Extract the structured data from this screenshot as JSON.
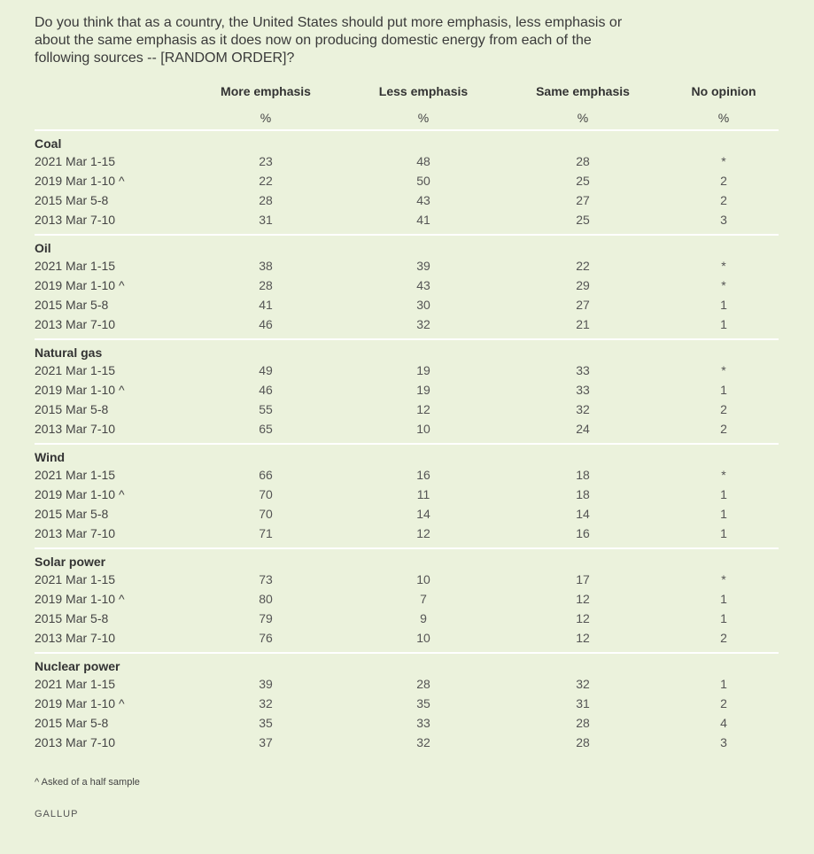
{
  "question": "Do you think that as a country, the United States should put more emphasis, less emphasis or about the same emphasis as it does now on producing domestic energy from each of the following sources -- [RANDOM ORDER]?",
  "columns": [
    "More emphasis",
    "Less emphasis",
    "Same emphasis",
    "No opinion"
  ],
  "units": [
    "%",
    "%",
    "%",
    "%"
  ],
  "groups": [
    {
      "name": "Coal",
      "rows": [
        {
          "date": "2021 Mar 1-15",
          "values": [
            "23",
            "48",
            "28",
            "*"
          ]
        },
        {
          "date": "2019 Mar 1-10 ^",
          "values": [
            "22",
            "50",
            "25",
            "2"
          ]
        },
        {
          "date": "2015 Mar 5-8",
          "values": [
            "28",
            "43",
            "27",
            "2"
          ]
        },
        {
          "date": "2013 Mar 7-10",
          "values": [
            "31",
            "41",
            "25",
            "3"
          ]
        }
      ]
    },
    {
      "name": "Oil",
      "rows": [
        {
          "date": "2021 Mar 1-15",
          "values": [
            "38",
            "39",
            "22",
            "*"
          ]
        },
        {
          "date": "2019 Mar 1-10 ^",
          "values": [
            "28",
            "43",
            "29",
            "*"
          ]
        },
        {
          "date": "2015 Mar 5-8",
          "values": [
            "41",
            "30",
            "27",
            "1"
          ]
        },
        {
          "date": "2013 Mar 7-10",
          "values": [
            "46",
            "32",
            "21",
            "1"
          ]
        }
      ]
    },
    {
      "name": "Natural gas",
      "rows": [
        {
          "date": "2021 Mar 1-15",
          "values": [
            "49",
            "19",
            "33",
            "*"
          ]
        },
        {
          "date": "2019 Mar 1-10 ^",
          "values": [
            "46",
            "19",
            "33",
            "1"
          ]
        },
        {
          "date": "2015 Mar 5-8",
          "values": [
            "55",
            "12",
            "32",
            "2"
          ]
        },
        {
          "date": "2013 Mar 7-10",
          "values": [
            "65",
            "10",
            "24",
            "2"
          ]
        }
      ]
    },
    {
      "name": "Wind",
      "rows": [
        {
          "date": "2021 Mar 1-15",
          "values": [
            "66",
            "16",
            "18",
            "*"
          ]
        },
        {
          "date": "2019 Mar 1-10 ^",
          "values": [
            "70",
            "11",
            "18",
            "1"
          ]
        },
        {
          "date": "2015 Mar 5-8",
          "values": [
            "70",
            "14",
            "14",
            "1"
          ]
        },
        {
          "date": "2013 Mar 7-10",
          "values": [
            "71",
            "12",
            "16",
            "1"
          ]
        }
      ]
    },
    {
      "name": "Solar power",
      "rows": [
        {
          "date": "2021 Mar 1-15",
          "values": [
            "73",
            "10",
            "17",
            "*"
          ]
        },
        {
          "date": "2019 Mar 1-10 ^",
          "values": [
            "80",
            "7",
            "12",
            "1"
          ]
        },
        {
          "date": "2015 Mar 5-8",
          "values": [
            "79",
            "9",
            "12",
            "1"
          ]
        },
        {
          "date": "2013 Mar 7-10",
          "values": [
            "76",
            "10",
            "12",
            "2"
          ]
        }
      ]
    },
    {
      "name": "Nuclear power",
      "rows": [
        {
          "date": "2021 Mar 1-15",
          "values": [
            "39",
            "28",
            "32",
            "1"
          ]
        },
        {
          "date": "2019 Mar 1-10 ^",
          "values": [
            "32",
            "35",
            "31",
            "2"
          ]
        },
        {
          "date": "2015 Mar 5-8",
          "values": [
            "35",
            "33",
            "28",
            "4"
          ]
        },
        {
          "date": "2013 Mar 7-10",
          "values": [
            "37",
            "32",
            "28",
            "3"
          ]
        }
      ]
    }
  ],
  "footnote": "^ Asked of a half sample",
  "brand": "GALLUP",
  "colors": {
    "background": "#ebf2dc",
    "rule": "#ffffff",
    "text": "#333333"
  }
}
